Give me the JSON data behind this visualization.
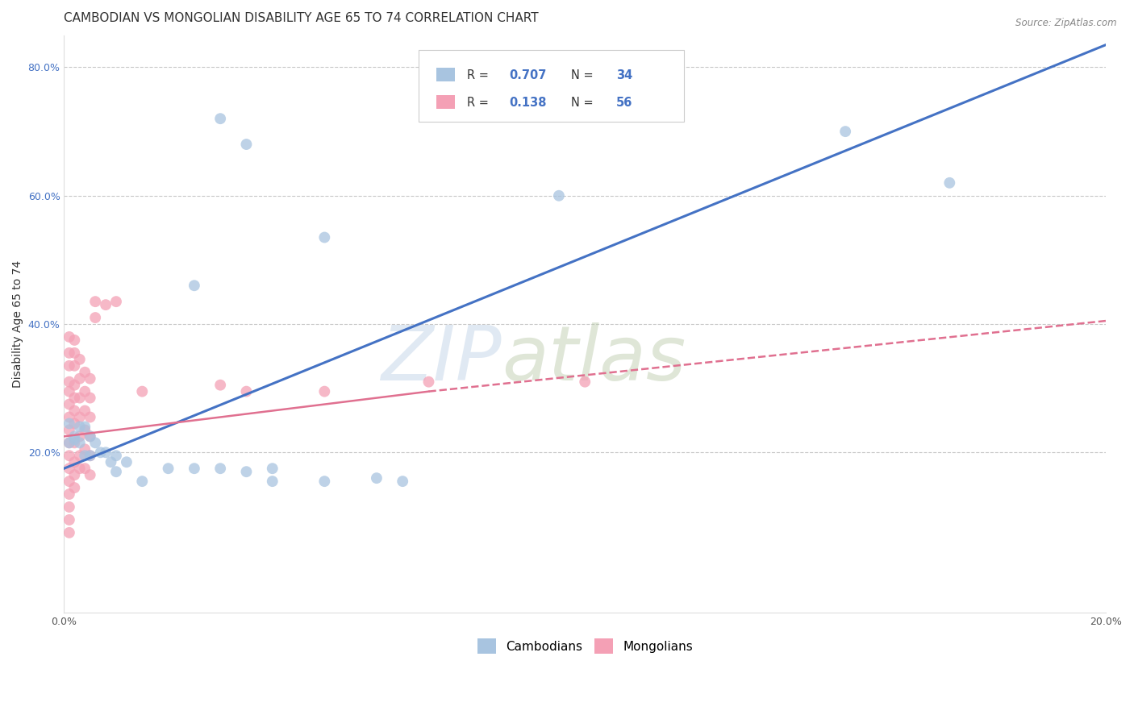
{
  "title": "CAMBODIAN VS MONGOLIAN DISABILITY AGE 65 TO 74 CORRELATION CHART",
  "source": "Source: ZipAtlas.com",
  "ylabel": "Disability Age 65 to 74",
  "xlim": [
    0.0,
    0.2
  ],
  "ylim": [
    -0.05,
    0.85
  ],
  "xticks": [
    0.0,
    0.02,
    0.04,
    0.06,
    0.08,
    0.1,
    0.12,
    0.14,
    0.16,
    0.18,
    0.2
  ],
  "yticks": [
    0.2,
    0.4,
    0.6,
    0.8
  ],
  "xtick_labels": [
    "0.0%",
    "",
    "",
    "",
    "",
    "",
    "",
    "",
    "",
    "",
    "20.0%"
  ],
  "ytick_labels": [
    "20.0%",
    "40.0%",
    "60.0%",
    "80.0%"
  ],
  "legend_labels": [
    "Cambodians",
    "Mongolians"
  ],
  "cambodian_color": "#a8c4e0",
  "mongolian_color": "#f4a0b5",
  "cambodian_line_color": "#4472c4",
  "mongolian_line_color": "#e07090",
  "R_cambodian": 0.707,
  "N_cambodian": 34,
  "R_mongolian": 0.138,
  "N_mongolian": 56,
  "background_color": "#ffffff",
  "grid_color": "#c8c8c8",
  "cambodian_points": [
    [
      0.001,
      0.245
    ],
    [
      0.001,
      0.215
    ],
    [
      0.002,
      0.22
    ],
    [
      0.002,
      0.225
    ],
    [
      0.003,
      0.215
    ],
    [
      0.003,
      0.24
    ],
    [
      0.004,
      0.24
    ],
    [
      0.004,
      0.195
    ],
    [
      0.005,
      0.225
    ],
    [
      0.005,
      0.195
    ],
    [
      0.006,
      0.215
    ],
    [
      0.007,
      0.2
    ],
    [
      0.008,
      0.2
    ],
    [
      0.009,
      0.185
    ],
    [
      0.01,
      0.195
    ],
    [
      0.01,
      0.17
    ],
    [
      0.012,
      0.185
    ],
    [
      0.015,
      0.155
    ],
    [
      0.02,
      0.175
    ],
    [
      0.025,
      0.175
    ],
    [
      0.03,
      0.175
    ],
    [
      0.035,
      0.17
    ],
    [
      0.04,
      0.175
    ],
    [
      0.04,
      0.155
    ],
    [
      0.05,
      0.155
    ],
    [
      0.06,
      0.16
    ],
    [
      0.065,
      0.155
    ],
    [
      0.025,
      0.46
    ],
    [
      0.05,
      0.535
    ],
    [
      0.03,
      0.72
    ],
    [
      0.035,
      0.68
    ],
    [
      0.15,
      0.7
    ],
    [
      0.17,
      0.62
    ],
    [
      0.095,
      0.6
    ]
  ],
  "mongolian_points": [
    [
      0.001,
      0.38
    ],
    [
      0.001,
      0.355
    ],
    [
      0.001,
      0.335
    ],
    [
      0.001,
      0.31
    ],
    [
      0.001,
      0.295
    ],
    [
      0.001,
      0.275
    ],
    [
      0.001,
      0.255
    ],
    [
      0.001,
      0.235
    ],
    [
      0.001,
      0.215
    ],
    [
      0.001,
      0.195
    ],
    [
      0.001,
      0.175
    ],
    [
      0.001,
      0.155
    ],
    [
      0.001,
      0.135
    ],
    [
      0.001,
      0.115
    ],
    [
      0.001,
      0.095
    ],
    [
      0.001,
      0.075
    ],
    [
      0.002,
      0.375
    ],
    [
      0.002,
      0.355
    ],
    [
      0.002,
      0.335
    ],
    [
      0.002,
      0.305
    ],
    [
      0.002,
      0.285
    ],
    [
      0.002,
      0.265
    ],
    [
      0.002,
      0.245
    ],
    [
      0.002,
      0.215
    ],
    [
      0.002,
      0.185
    ],
    [
      0.002,
      0.165
    ],
    [
      0.002,
      0.145
    ],
    [
      0.003,
      0.345
    ],
    [
      0.003,
      0.315
    ],
    [
      0.003,
      0.285
    ],
    [
      0.003,
      0.255
    ],
    [
      0.003,
      0.225
    ],
    [
      0.003,
      0.195
    ],
    [
      0.003,
      0.175
    ],
    [
      0.004,
      0.325
    ],
    [
      0.004,
      0.295
    ],
    [
      0.004,
      0.265
    ],
    [
      0.004,
      0.235
    ],
    [
      0.004,
      0.205
    ],
    [
      0.004,
      0.175
    ],
    [
      0.005,
      0.315
    ],
    [
      0.005,
      0.285
    ],
    [
      0.005,
      0.255
    ],
    [
      0.005,
      0.225
    ],
    [
      0.005,
      0.195
    ],
    [
      0.005,
      0.165
    ],
    [
      0.006,
      0.435
    ],
    [
      0.006,
      0.41
    ],
    [
      0.008,
      0.43
    ],
    [
      0.01,
      0.435
    ],
    [
      0.015,
      0.295
    ],
    [
      0.03,
      0.305
    ],
    [
      0.035,
      0.295
    ],
    [
      0.05,
      0.295
    ],
    [
      0.07,
      0.31
    ],
    [
      0.1,
      0.31
    ]
  ],
  "cambodian_trendline": [
    [
      0.0,
      0.175
    ],
    [
      0.2,
      0.835
    ]
  ],
  "mongolian_trendline_solid": [
    [
      0.0,
      0.225
    ],
    [
      0.07,
      0.295
    ]
  ],
  "mongolian_trendline_dashed": [
    [
      0.07,
      0.295
    ],
    [
      0.2,
      0.405
    ]
  ],
  "watermark_zip": "ZIP",
  "watermark_atlas": "atlas",
  "dot_size": 100,
  "title_fontsize": 11,
  "axis_label_fontsize": 10,
  "tick_fontsize": 9,
  "legend_fontsize": 11
}
